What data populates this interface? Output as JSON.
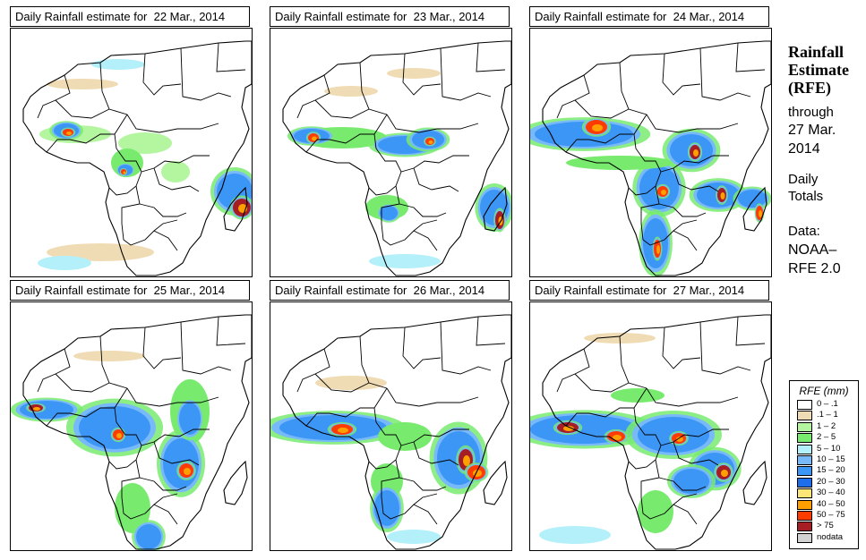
{
  "panels": [
    {
      "title": "Daily Rainfall estimate for  22 Mar., 2014",
      "date": "22 Mar., 2014"
    },
    {
      "title": "Daily Rainfall estimate for  23 Mar., 2014",
      "date": "23 Mar., 2014"
    },
    {
      "title": "Daily Rainfall estimate for  24 Mar., 2014",
      "date": "24 Mar., 2014"
    },
    {
      "title": "Daily Rainfall estimate for  25 Mar., 2014",
      "date": "25 Mar., 2014"
    },
    {
      "title": "Daily Rainfall estimate for  26 Mar., 2014",
      "date": "26 Mar., 2014"
    },
    {
      "title": "Daily Rainfall estimate for  27 Mar., 2014",
      "date": "27 Mar., 2014"
    }
  ],
  "sidebar": {
    "title_lines": [
      "Rainfall",
      "Estimate",
      "(RFE)"
    ],
    "through_label": "through",
    "through_date_lines": [
      "27 Mar.",
      "2014"
    ],
    "period_lines": [
      "Daily",
      "Totals"
    ],
    "source_label": "Data:",
    "source_lines": [
      "NOAA–",
      "RFE 2.0"
    ]
  },
  "legend": {
    "title": "RFE (mm)",
    "items": [
      {
        "label": "0 – .1",
        "color": "#ffffff"
      },
      {
        "label": ".1 – 1",
        "color": "#f0dcb4"
      },
      {
        "label": "1 – 2",
        "color": "#b4f5a0"
      },
      {
        "label": "2 – 5",
        "color": "#78eb6e"
      },
      {
        "label": "5 – 10",
        "color": "#b4f0fa"
      },
      {
        "label": "10 – 15",
        "color": "#78b9fa"
      },
      {
        "label": "15 – 20",
        "color": "#3c96f5"
      },
      {
        "label": "20 – 30",
        "color": "#1e6eeb"
      },
      {
        "label": "30 – 40",
        "color": "#ffe678"
      },
      {
        "label": "40 – 50",
        "color": "#ffa000"
      },
      {
        "label": "50 – 75",
        "color": "#ff3c00"
      },
      {
        "label": "> 75",
        "color": "#a51e23"
      },
      {
        "label": "nodata",
        "color": "#d2d2d2"
      }
    ]
  }
}
